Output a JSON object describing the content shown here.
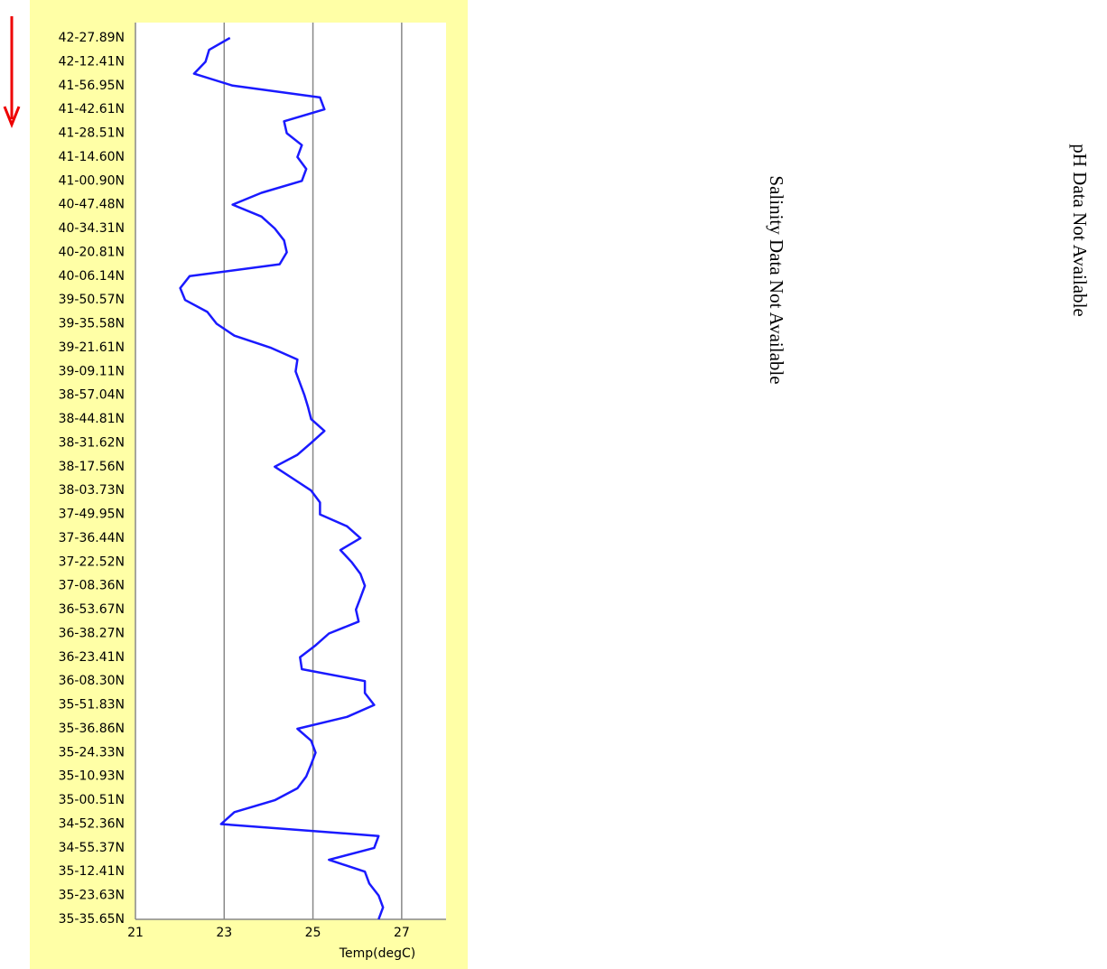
{
  "chart_data": {
    "type": "line",
    "x_label": "Temp(degC)",
    "categories": [
      "42-27.89N",
      null,
      "42-12.41N",
      null,
      "41-56.95N",
      null,
      "41-42.61N",
      null,
      "41-28.51N",
      null,
      "41-14.60N",
      null,
      "41-00.90N",
      null,
      "40-47.48N",
      null,
      "40-34.31N",
      null,
      "40-20.81N",
      null,
      "40-06.14N",
      null,
      "39-50.57N",
      null,
      "39-35.58N",
      null,
      "39-21.61N",
      null,
      "39-09.11N",
      null,
      "38-57.04N",
      null,
      "38-44.81N",
      null,
      "38-31.62N",
      null,
      "38-17.56N",
      null,
      "38-03.73N",
      null,
      "37-49.95N",
      null,
      "37-36.44N",
      null,
      "37-22.52N",
      null,
      "37-08.36N",
      null,
      "36-53.67N",
      null,
      "36-38.27N",
      null,
      "36-23.41N",
      null,
      "36-08.30N",
      null,
      "35-51.83N",
      null,
      "35-36.86N",
      null,
      "35-24.33N",
      null,
      "35-10.93N",
      null,
      "35-00.51N",
      null,
      "34-52.36N",
      null,
      "34-55.37N",
      null,
      "35-12.41N",
      null,
      "35-23.63N",
      null,
      "35-35.65N"
    ],
    "values": [
      23.13,
      22.66,
      22.58,
      22.32,
      23.19,
      25.16,
      25.26,
      24.35,
      24.41,
      24.75,
      24.65,
      24.85,
      24.75,
      23.84,
      23.19,
      23.84,
      24.14,
      24.35,
      24.41,
      24.25,
      22.22,
      22.01,
      22.12,
      22.62,
      22.83,
      23.23,
      24.04,
      24.65,
      24.61,
      24.71,
      24.81,
      24.89,
      24.96,
      25.26,
      24.96,
      24.65,
      24.14,
      24.55,
      24.96,
      25.16,
      25.16,
      25.77,
      26.07,
      25.62,
      25.87,
      26.07,
      26.17,
      26.07,
      25.97,
      26.03,
      25.36,
      25.06,
      24.71,
      24.75,
      26.17,
      26.17,
      26.38,
      25.77,
      24.65,
      24.96,
      25.06,
      24.96,
      24.85,
      24.65,
      24.14,
      23.23,
      22.93,
      26.48,
      26.38,
      25.36,
      26.17,
      26.27,
      26.48,
      26.58,
      26.48
    ],
    "color": "#1a1aff",
    "xlim": [
      21,
      28
    ],
    "xticks": [
      21,
      23,
      25,
      27
    ],
    "grid": true
  },
  "notes": [
    "Salinity Data Not Available",
    "pH Data Not Available"
  ]
}
